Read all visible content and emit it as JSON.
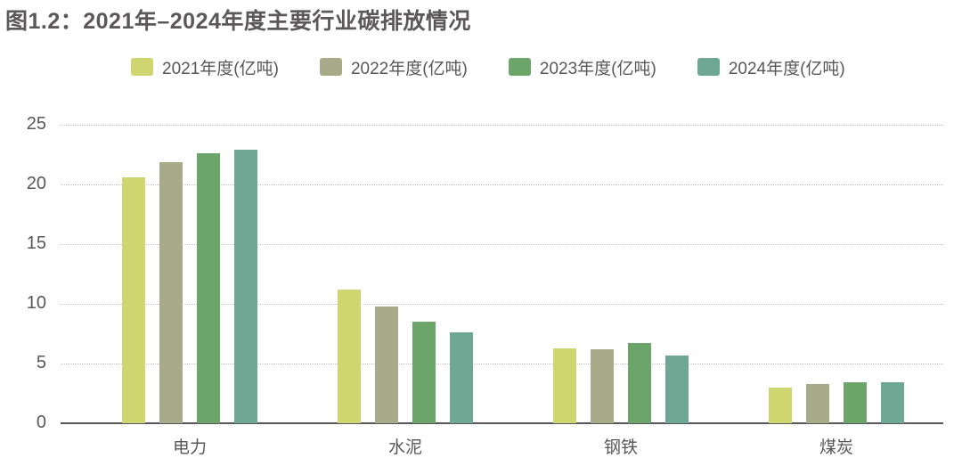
{
  "chart_data": {
    "type": "bar",
    "title": "图1.2：2021年–2024年度主要行业碳排放情况",
    "categories": [
      "电力",
      "水泥",
      "钢铁",
      "煤炭"
    ],
    "series": [
      {
        "name": "2021年度(亿吨)",
        "color": "#cfd66f",
        "values": [
          20.6,
          11.2,
          6.3,
          3.0
        ]
      },
      {
        "name": "2022年度(亿吨)",
        "color": "#a7ab89",
        "values": [
          21.9,
          9.8,
          6.2,
          3.3
        ]
      },
      {
        "name": "2023年度(亿吨)",
        "color": "#6ba56a",
        "values": [
          22.6,
          8.5,
          6.7,
          3.4
        ]
      },
      {
        "name": "2024年度(亿吨)",
        "color": "#6fa795",
        "values": [
          22.9,
          7.6,
          5.7,
          3.4
        ]
      }
    ],
    "ylim": [
      0,
      25
    ],
    "yticks": [
      0,
      5,
      10,
      15,
      20,
      25
    ],
    "grid": {
      "horizontal": true,
      "style": "dotted"
    },
    "legend_position": "top"
  },
  "colors": {
    "text": "#595757",
    "grid": "#c3c3c3",
    "axis": "#56555a",
    "background": "#ffffff"
  }
}
